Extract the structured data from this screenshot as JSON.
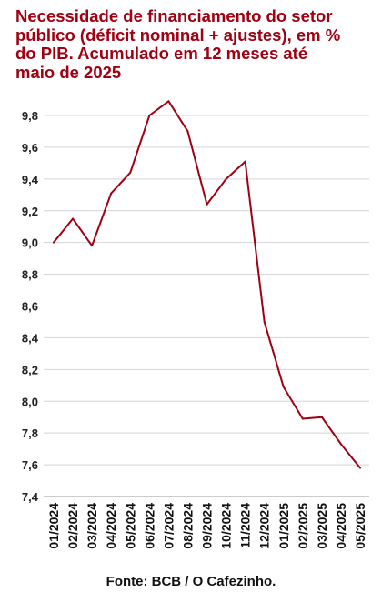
{
  "title_lines": [
    "Necessidade de financiamento do setor",
    "público (déficit nominal + ajustes), em %",
    "do PIB. Acumulado em 12 meses até",
    "maio de 2025"
  ],
  "source": "Fonte: BCB / O Cafezinho.",
  "chart_data": {
    "type": "line",
    "title": "Necessidade de financiamento do setor público (déficit nominal + ajustes), em % do PIB. Acumulado em 12 meses até maio de 2025",
    "xlabel": "",
    "ylabel": "",
    "ylim": [
      7.4,
      9.8
    ],
    "yticks": [
      "7,4",
      "7,6",
      "7,8",
      "8,0",
      "8,2",
      "8,4",
      "8,6",
      "8,8",
      "9,0",
      "9,2",
      "9,4",
      "9,6",
      "9,8"
    ],
    "grid": true,
    "line_color": "#a00012",
    "categories": [
      "01/2024",
      "02/2024",
      "03/2024",
      "04/2024",
      "05/2024",
      "06/2024",
      "07/2024",
      "08/2024",
      "09/2024",
      "10/2024",
      "11/2024",
      "12/2024",
      "01/2025",
      "02/2025",
      "03/2025",
      "04/2025",
      "05/2025"
    ],
    "series": [
      {
        "values": [
          9.0,
          9.15,
          8.98,
          9.31,
          9.44,
          9.8,
          9.89,
          9.7,
          9.24,
          9.4,
          9.51,
          8.5,
          8.09,
          7.89,
          7.9,
          7.73,
          7.58
        ]
      }
    ]
  }
}
